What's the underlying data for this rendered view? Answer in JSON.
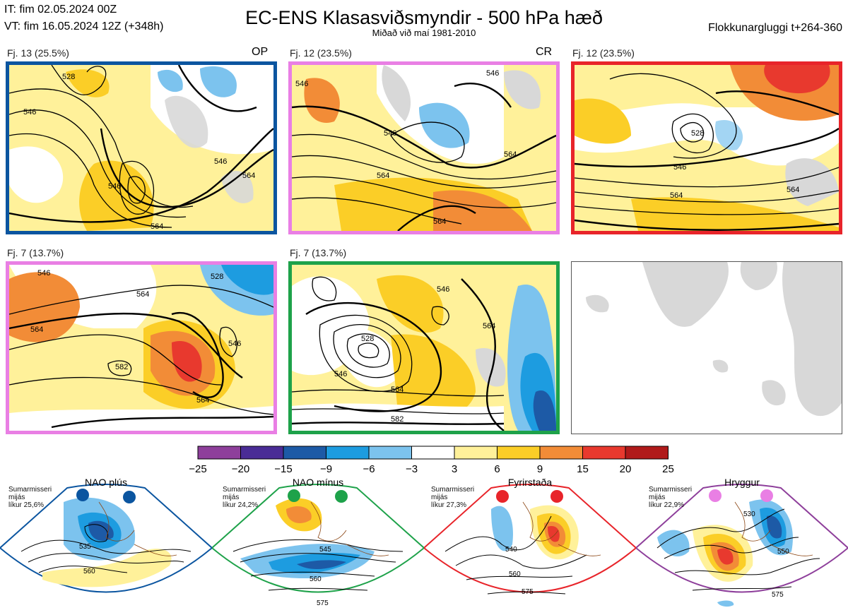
{
  "header": {
    "initial_time": "IT: fim 02.05.2024 00Z",
    "valid_time": "VT: fim 16.05.2024 12Z  (+348h)",
    "title": "EC-ENS Klasasviðsmyndir - 500 hPa hæð",
    "subtitle": "Miðað við maí 1981-2010",
    "cluster_window": "Flokkunargluggi t+264-360"
  },
  "panels": [
    {
      "label": "Fj. 13 (25.5%)",
      "tag": "OP",
      "border": "#0b55a0",
      "contours": [
        "528",
        "546",
        "546",
        "546",
        "564",
        "564"
      ]
    },
    {
      "label": "Fj. 12 (23.5%)",
      "tag": "CR",
      "border": "#e97fe4",
      "contours": [
        "546",
        "546",
        "546",
        "564",
        "564",
        "564"
      ]
    },
    {
      "label": "Fj. 12 (23.5%)",
      "tag": "",
      "border": "#e8242a",
      "contours": [
        "528",
        "546",
        "564",
        "564"
      ]
    },
    {
      "label": "Fj. 7 (13.7%)",
      "tag": "",
      "border": "#e97fe4",
      "contours": [
        "546",
        "564",
        "564",
        "582",
        "546",
        "528",
        "564"
      ]
    },
    {
      "label": "Fj. 7 (13.7%)",
      "tag": "",
      "border": "#1ea24a",
      "contours": [
        "528",
        "546",
        "546",
        "564",
        "582",
        "564"
      ]
    }
  ],
  "colorbar": {
    "ticks": [
      "−25",
      "−20",
      "−15",
      "−9",
      "−6",
      "−3",
      "3",
      "6",
      "9",
      "15",
      "20",
      "25"
    ],
    "colors": [
      "#8e3f9b",
      "#4a2c96",
      "#1d5aa6",
      "#1d9ce0",
      "#7cc3ee",
      "#ffffff",
      "#fff19a",
      "#fbce27",
      "#f28c37",
      "#e8392e",
      "#b01a1a"
    ]
  },
  "regimes": [
    {
      "name": "NAO plús",
      "season": "Sumarmisseri",
      "climo": "mijás",
      "likelihood": "líkur 25,6%",
      "color": "#0b55a0",
      "labels": [
        "535",
        "560"
      ]
    },
    {
      "name": "NAO mínus",
      "season": "Sumarmisseri",
      "climo": "mijás",
      "likelihood": "líkur 24,2%",
      "color": "#1ea24a",
      "labels": [
        "545",
        "560",
        "575"
      ]
    },
    {
      "name": "Fyrirstaða",
      "season": "Sumarmisseri",
      "climo": "mijás",
      "likelihood": "líkur 27,3%",
      "color": "#e8242a",
      "labels": [
        "540",
        "560",
        "575"
      ]
    },
    {
      "name": "Hryggur",
      "season": "Sumarmisseri",
      "climo": "mijás",
      "likelihood": "líkur 22,9%",
      "color": "#8e3f9b",
      "labels": [
        "530",
        "550",
        "575"
      ]
    }
  ]
}
